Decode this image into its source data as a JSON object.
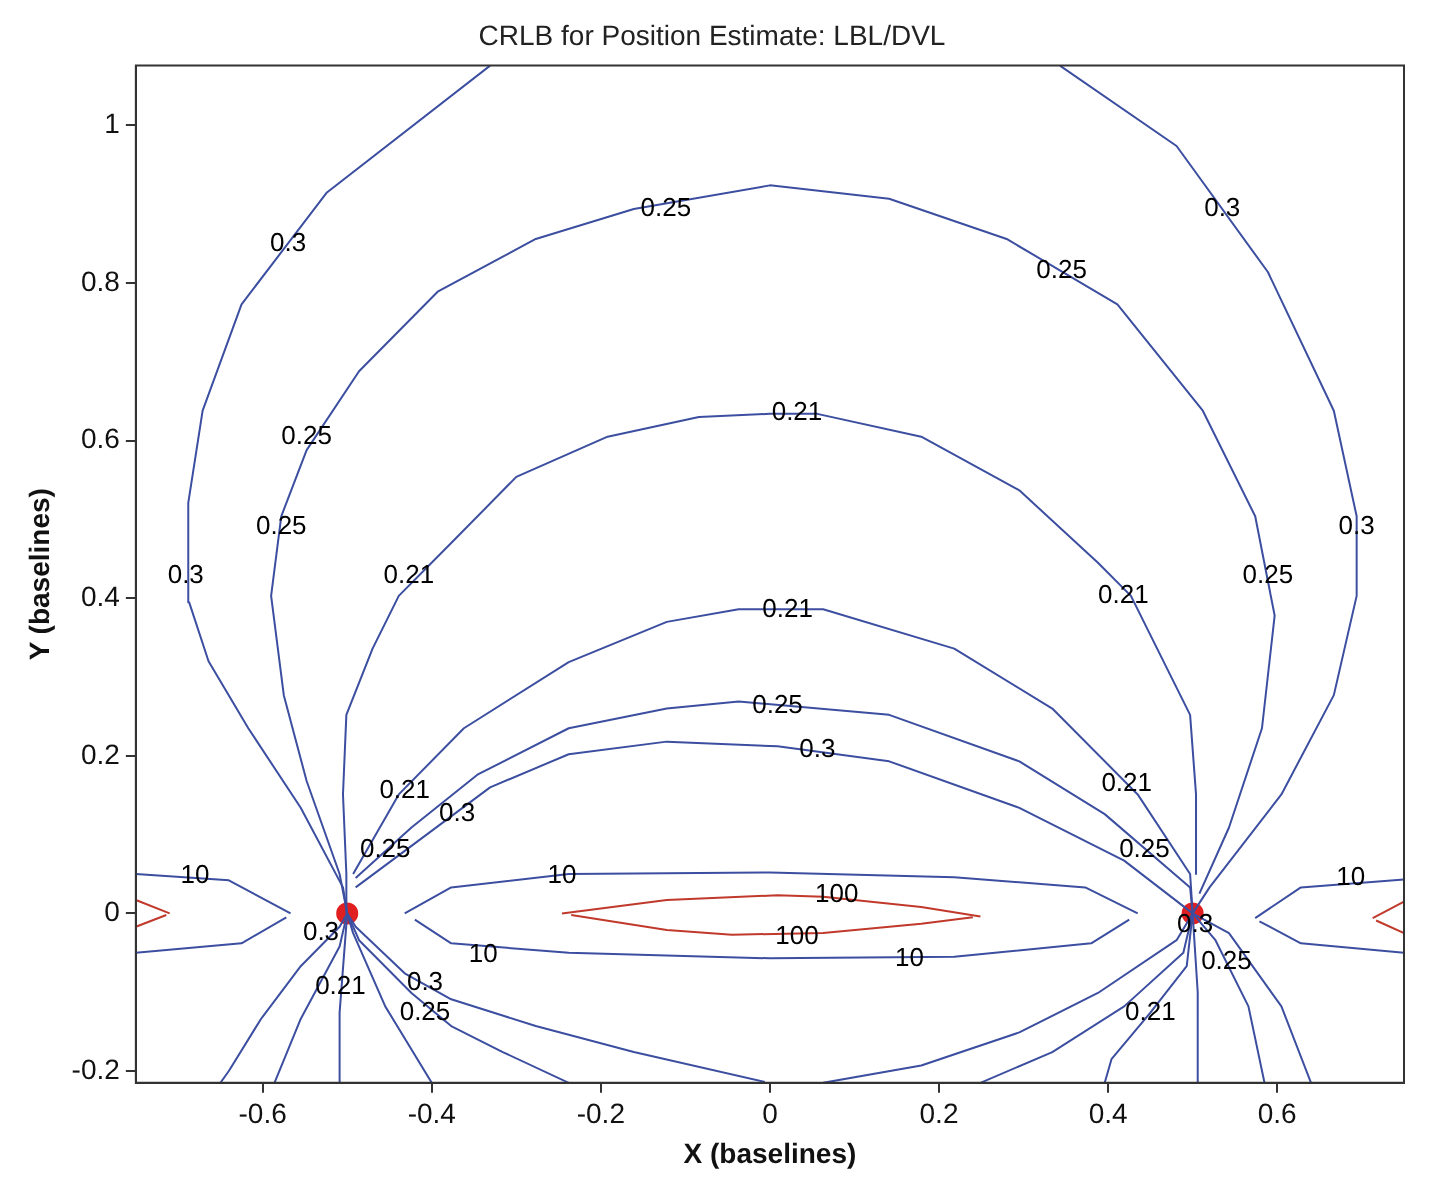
{
  "chart_data": {
    "type": "line",
    "title": "CRLB for Position Estimate: LBL/DVL",
    "xlabel": "X (baselines)",
    "ylabel": "Y (baselines)",
    "xlim": [
      -0.75,
      0.75
    ],
    "ylim": [
      -0.215,
      1.076
    ],
    "xticks": [
      -0.6,
      -0.4,
      -0.2,
      0,
      0.2,
      0.4,
      0.6
    ],
    "yticks": [
      -0.2,
      0,
      0.2,
      0.4,
      0.6,
      0.8,
      1
    ],
    "grid": false,
    "legend": false,
    "series": [
      {
        "color": "#3c4ea0",
        "x": [
          -0.5,
          -0.505,
          -0.555,
          -0.617,
          -0.664,
          -0.687,
          -0.688,
          -0.671,
          -0.625,
          -0.524,
          -0.331
        ],
        "values": [
          0,
          0.033,
          0.134,
          0.235,
          0.32,
          0.395,
          0.521,
          0.638,
          0.773,
          0.915,
          1.076
        ]
      },
      {
        "color": "#3c4ea0",
        "x": [
          0.5,
          0.52,
          0.605,
          0.667,
          0.694,
          0.694,
          0.667,
          0.589,
          0.481,
          0.343
        ],
        "values": [
          0,
          0.033,
          0.151,
          0.277,
          0.403,
          0.504,
          0.638,
          0.814,
          0.974,
          1.076
        ]
      },
      {
        "color": "#3c4ea0",
        "x": [
          -0.5,
          -0.509,
          -0.548,
          -0.575,
          -0.59,
          -0.578,
          -0.548,
          -0.486,
          -0.393,
          -0.277,
          -0.161,
          0,
          0.141,
          0.28,
          0.411,
          0.512,
          0.574,
          0.597,
          0.582,
          0.543,
          0.508
        ],
        "values": [
          0,
          0.05,
          0.168,
          0.277,
          0.403,
          0.504,
          0.588,
          0.688,
          0.789,
          0.856,
          0.894,
          0.924,
          0.907,
          0.856,
          0.773,
          0.638,
          0.504,
          0.378,
          0.235,
          0.109,
          0.025
        ]
      },
      {
        "color": "#3c4ea0",
        "x": [
          -0.5,
          -0.501,
          -0.505,
          -0.501,
          -0.47,
          -0.439,
          -0.377,
          -0.3,
          -0.192,
          -0.084,
          0,
          0.056,
          0.179,
          0.295,
          0.388,
          0.427,
          0.458,
          0.497,
          0.504,
          0.504
        ],
        "values": [
          0,
          0.05,
          0.151,
          0.252,
          0.336,
          0.403,
          0.47,
          0.554,
          0.605,
          0.63,
          0.634,
          0.634,
          0.605,
          0.537,
          0.445,
          0.403,
          0.336,
          0.252,
          0.151,
          0.05
        ]
      },
      {
        "color": "#3c4ea0",
        "x": [
          -0.493,
          -0.439,
          -0.362,
          -0.238,
          -0.122,
          -0.037,
          0.063,
          0.218,
          0.334,
          0.435,
          0.497,
          0.5
        ],
        "values": [
          0.05,
          0.151,
          0.235,
          0.319,
          0.37,
          0.386,
          0.386,
          0.336,
          0.26,
          0.151,
          0.05,
          0
        ]
      },
      {
        "color": "#3c4ea0",
        "x": [
          -0.49,
          -0.424,
          -0.346,
          -0.238,
          -0.122,
          -0.037,
          0.141,
          0.295,
          0.396,
          0.497,
          0.5
        ],
        "values": [
          0.045,
          0.109,
          0.176,
          0.235,
          0.26,
          0.269,
          0.252,
          0.193,
          0.126,
          0.033,
          0
        ]
      },
      {
        "color": "#3c4ea0",
        "x": [
          -0.49,
          -0.416,
          -0.331,
          -0.238,
          -0.122,
          0.009,
          0.141,
          0.295,
          0.419,
          0.5
        ],
        "values": [
          0.033,
          0.092,
          0.16,
          0.202,
          0.218,
          0.212,
          0.193,
          0.134,
          0.067,
          0
        ]
      },
      {
        "color": "#3c4ea0",
        "x": [
          -0.5,
          -0.509,
          -0.555,
          -0.602,
          -0.64,
          -0.65
        ],
        "values": [
          0,
          -0.017,
          -0.067,
          -0.134,
          -0.2,
          -0.215
        ]
      },
      {
        "color": "#3c4ea0",
        "x": [
          -0.5,
          -0.509,
          -0.555,
          -0.586
        ],
        "values": [
          0,
          -0.042,
          -0.134,
          -0.215
        ]
      },
      {
        "color": "#3c4ea0",
        "x": [
          -0.5,
          -0.509,
          -0.509
        ],
        "values": [
          0,
          -0.126,
          -0.215
        ]
      },
      {
        "color": "#3c4ea0",
        "x": [
          -0.5,
          -0.493,
          -0.455,
          -0.4
        ],
        "values": [
          0,
          -0.025,
          -0.118,
          -0.215
        ]
      },
      {
        "color": "#3c4ea0",
        "x": [
          -0.5,
          -0.486,
          -0.424,
          -0.377,
          -0.316,
          -0.238
        ],
        "values": [
          0,
          -0.034,
          -0.101,
          -0.143,
          -0.176,
          -0.215
        ]
      },
      {
        "color": "#3c4ea0",
        "x": [
          -0.5,
          -0.49,
          -0.432,
          -0.377,
          -0.277,
          -0.161,
          -0.006
        ],
        "values": [
          0,
          -0.017,
          -0.076,
          -0.109,
          -0.143,
          -0.176,
          -0.214
        ]
      },
      {
        "color": "#3c4ea0",
        "x": [
          0.5,
          0.481,
          0.388,
          0.295,
          0.179,
          0.063
        ],
        "values": [
          0,
          -0.034,
          -0.101,
          -0.151,
          -0.193,
          -0.215
        ]
      },
      {
        "color": "#3c4ea0",
        "x": [
          0.5,
          0.489,
          0.419,
          0.334,
          0.249
        ],
        "values": [
          0,
          -0.05,
          -0.118,
          -0.176,
          -0.215
        ]
      },
      {
        "color": "#3c4ea0",
        "x": [
          0.5,
          0.493,
          0.45,
          0.404,
          0.396
        ],
        "values": [
          0,
          -0.067,
          -0.126,
          -0.185,
          -0.215
        ]
      },
      {
        "color": "#3c4ea0",
        "x": [
          0.5,
          0.506,
          0.506
        ],
        "values": [
          0,
          -0.1,
          -0.215
        ]
      },
      {
        "color": "#3c4ea0",
        "x": [
          0.5,
          0.527,
          0.566,
          0.585
        ],
        "values": [
          0,
          -0.034,
          -0.118,
          -0.215
        ]
      },
      {
        "color": "#3c4ea0",
        "x": [
          0.5,
          0.543,
          0.605,
          0.64
        ],
        "values": [
          0,
          -0.025,
          -0.118,
          -0.215
        ]
      },
      {
        "color": "#3c4ea0",
        "x": [
          -0.432,
          -0.377,
          -0.238,
          0,
          0.218,
          0.373,
          0.435
        ],
        "values": [
          0,
          0.033,
          0.05,
          0.052,
          0.046,
          0.033,
          0
        ]
      },
      {
        "color": "#3c4ea0",
        "x": [
          -0.42,
          -0.377,
          -0.238,
          0,
          0.218,
          0.38,
          0.425
        ],
        "values": [
          -0.008,
          -0.038,
          -0.05,
          -0.057,
          -0.055,
          -0.038,
          -0.008
        ]
      },
      {
        "color": "#c0392b",
        "x": [
          -0.246,
          -0.122,
          0.009,
          0.063,
          0.179,
          0.249
        ],
        "values": [
          0,
          0.017,
          0.023,
          0.021,
          0.008,
          -0.004
        ]
      },
      {
        "color": "#c0392b",
        "x": [
          -0.235,
          -0.122,
          -0.045,
          0.063,
          0.179,
          0.24
        ],
        "values": [
          -0.002,
          -0.021,
          -0.027,
          -0.025,
          -0.013,
          -0.005
        ]
      },
      {
        "color": "#3c4ea0",
        "x": [
          -0.75,
          -0.64,
          -0.567
        ],
        "values": [
          0.05,
          0.042,
          0
        ]
      },
      {
        "color": "#3c4ea0",
        "x": [
          -0.75,
          -0.625,
          -0.572
        ],
        "values": [
          -0.05,
          -0.038,
          -0.005
        ]
      },
      {
        "color": "#c0392b",
        "x": [
          -0.75,
          -0.71
        ],
        "values": [
          0.017,
          0
        ]
      },
      {
        "color": "#c0392b",
        "x": [
          -0.75,
          -0.714
        ],
        "values": [
          -0.017,
          -0.002
        ]
      },
      {
        "color": "#3c4ea0",
        "x": [
          0.574,
          0.628,
          0.75
        ],
        "values": [
          -0.006,
          0.033,
          0.043
        ]
      },
      {
        "color": "#3c4ea0",
        "x": [
          0.579,
          0.628,
          0.75
        ],
        "values": [
          -0.01,
          -0.038,
          -0.05
        ]
      },
      {
        "color": "#c0392b",
        "x": [
          0.713,
          0.75
        ],
        "values": [
          -0.006,
          0.015
        ]
      },
      {
        "color": "#c0392b",
        "x": [
          0.717,
          0.75
        ],
        "values": [
          -0.009,
          -0.025
        ]
      },
      {
        "type": "scatter",
        "marker": "circle",
        "color": "#e02020",
        "x": [
          -0.5,
          0.5
        ],
        "values": [
          0,
          0
        ]
      }
    ],
    "annotations": [
      {
        "text": "0.3",
        "x": -0.57,
        "y": 0.85
      },
      {
        "text": "0.25",
        "x": -0.123,
        "y": 0.894
      },
      {
        "text": "0.25",
        "x": 0.345,
        "y": 0.815
      },
      {
        "text": "0.3",
        "x": 0.535,
        "y": 0.894
      },
      {
        "text": "0.21",
        "x": 0.032,
        "y": 0.635
      },
      {
        "text": "0.25",
        "x": -0.548,
        "y": 0.605
      },
      {
        "text": "0.25",
        "x": -0.578,
        "y": 0.491
      },
      {
        "text": "0.3",
        "x": -0.691,
        "y": 0.428
      },
      {
        "text": "0.21",
        "x": -0.427,
        "y": 0.428
      },
      {
        "text": "0.21",
        "x": 0.418,
        "y": 0.403
      },
      {
        "text": "0.25",
        "x": 0.589,
        "y": 0.428
      },
      {
        "text": "0.3",
        "x": 0.694,
        "y": 0.491
      },
      {
        "text": "0.21",
        "x": 0.021,
        "y": 0.385
      },
      {
        "text": "0.25",
        "x": 0.009,
        "y": 0.264
      },
      {
        "text": "0.3",
        "x": 0.056,
        "y": 0.207
      },
      {
        "text": "0.21",
        "x": -0.432,
        "y": 0.156
      },
      {
        "text": "0.25",
        "x": -0.455,
        "y": 0.081
      },
      {
        "text": "0.3",
        "x": -0.37,
        "y": 0.126
      },
      {
        "text": "0.21",
        "x": 0.422,
        "y": 0.164
      },
      {
        "text": "0.25",
        "x": 0.443,
        "y": 0.081
      },
      {
        "text": "10",
        "x": -0.68,
        "y": 0.048
      },
      {
        "text": "10",
        "x": -0.246,
        "y": 0.048
      },
      {
        "text": "100",
        "x": 0.079,
        "y": 0.023
      },
      {
        "text": "100",
        "x": 0.032,
        "y": -0.03
      },
      {
        "text": "10",
        "x": -0.339,
        "y": -0.053
      },
      {
        "text": "10",
        "x": 0.165,
        "y": -0.058
      },
      {
        "text": "10",
        "x": 0.687,
        "y": 0.045
      },
      {
        "text": "0.3",
        "x": -0.531,
        "y": -0.025
      },
      {
        "text": "0.21",
        "x": -0.508,
        "y": -0.093
      },
      {
        "text": "0.3",
        "x": -0.408,
        "y": -0.088
      },
      {
        "text": "0.25",
        "x": -0.408,
        "y": -0.126
      },
      {
        "text": "0.3",
        "x": 0.503,
        "y": -0.015
      },
      {
        "text": "0.25",
        "x": 0.54,
        "y": -0.062
      },
      {
        "text": "0.21",
        "x": 0.45,
        "y": -0.126
      }
    ]
  }
}
